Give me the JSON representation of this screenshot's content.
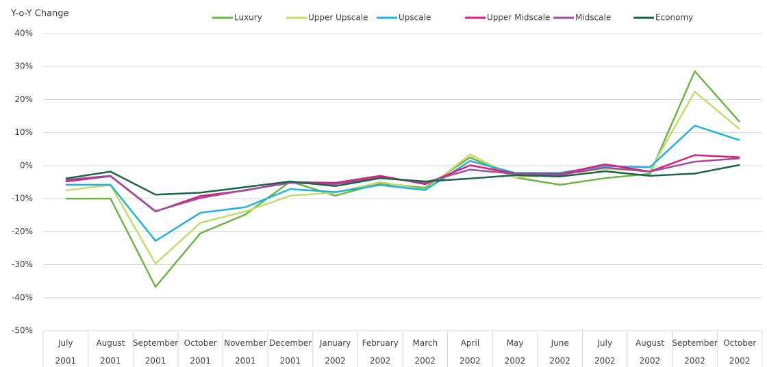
{
  "chart_data": {
    "type": "line",
    "y_label": "Y-o-Y Change",
    "categories": [
      "July 2001",
      "August 2001",
      "September 2001",
      "October 2001",
      "November 2001",
      "December 2001",
      "January 2002",
      "February 2002",
      "March 2002",
      "April 2002",
      "May 2002",
      "June 2002",
      "July 2002",
      "August 2002",
      "September 2002",
      "October 2002"
    ],
    "ylim": [
      -50,
      40
    ],
    "yticks": [
      {
        "value": -50,
        "label": "-50%"
      },
      {
        "value": -40,
        "label": "-40%"
      },
      {
        "value": -30,
        "label": "-30%"
      },
      {
        "value": -20,
        "label": "-20%"
      },
      {
        "value": -10,
        "label": "-10%"
      },
      {
        "value": 0,
        "label": "0%"
      },
      {
        "value": 10,
        "label": "10%"
      },
      {
        "value": 20,
        "label": "20%"
      },
      {
        "value": 30,
        "label": "30%"
      },
      {
        "value": 40,
        "label": "40%"
      }
    ],
    "grid": true,
    "legend": "top",
    "series": [
      {
        "name": "Luxury",
        "color": "#6ab545",
        "values": [
          -10,
          -10,
          -36.7,
          -20.5,
          -14.8,
          -4.8,
          -9.1,
          -5.4,
          -6.7,
          2.5,
          -3.6,
          -5.8,
          -3.8,
          -2.5,
          28.6,
          13.2
        ]
      },
      {
        "name": "Upper Upscale",
        "color": "#c3dc6e",
        "values": [
          -7.5,
          -5.9,
          -29.7,
          -17.3,
          -13.9,
          -9.1,
          -8.2,
          -5.0,
          -7.3,
          3.4,
          -3.6,
          -2.6,
          -1.0,
          -1.6,
          22.4,
          11.0
        ]
      },
      {
        "name": "Upscale",
        "color": "#22b1dd",
        "values": [
          -5.8,
          -5.8,
          -22.8,
          -14.3,
          -12.6,
          -7.1,
          -8.0,
          -5.9,
          -7.4,
          1.4,
          -2.2,
          -2.2,
          -0.1,
          -0.5,
          12.1,
          7.7
        ]
      },
      {
        "name": "Upper Midscale",
        "color": "#e0197d",
        "values": [
          -4.8,
          -3.2,
          -13.9,
          -9.2,
          -7.5,
          -5.0,
          -5.2,
          -3.1,
          -5.6,
          0.1,
          -2.4,
          -2.6,
          0.4,
          -1.8,
          3.2,
          2.5
        ]
      },
      {
        "name": "Midscale",
        "color": "#9b4f9b",
        "values": [
          -4.3,
          -3.1,
          -13.8,
          -9.8,
          -7.4,
          -5.2,
          -5.6,
          -3.6,
          -5.1,
          -1.2,
          -2.5,
          -2.8,
          -0.6,
          -1.8,
          1.2,
          2.2
        ]
      },
      {
        "name": "Economy",
        "color": "#1a6446",
        "values": [
          -3.9,
          -1.8,
          -8.8,
          -8.2,
          -6.5,
          -4.8,
          -6.2,
          -3.8,
          -4.8,
          -3.9,
          -2.9,
          -3.3,
          -1.7,
          -3.1,
          -2.4,
          0.2
        ]
      }
    ]
  }
}
